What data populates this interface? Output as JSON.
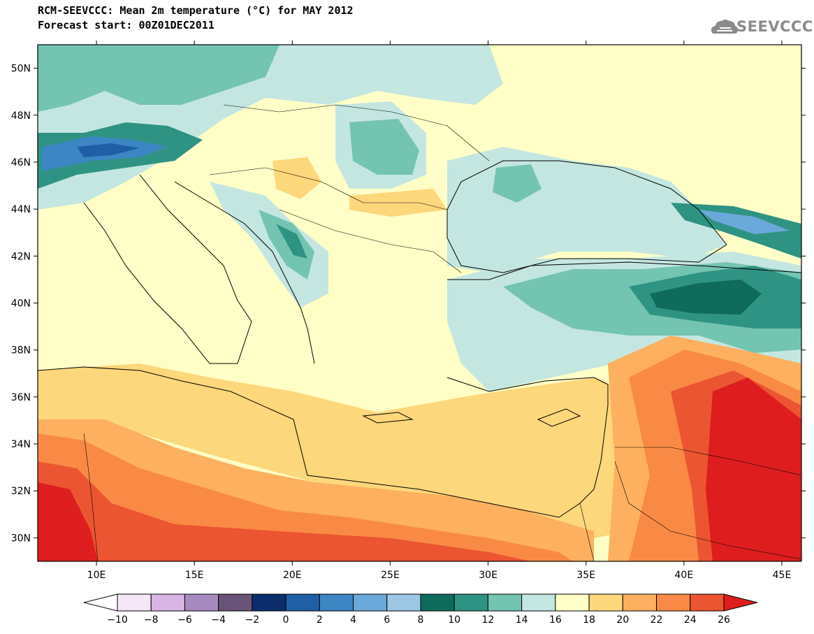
{
  "header": {
    "title_line1": "RCM-SEEVCCC: Mean 2m temperature (°C) for MAY 2012",
    "title_line2": "Forecast start: 00Z01DEC2011",
    "logo_text": "SEEVCCC"
  },
  "map": {
    "lon_range": [
      7,
      46
    ],
    "lat_range": [
      29,
      51
    ],
    "lat_labels": [
      "50N",
      "48N",
      "46N",
      "44N",
      "42N",
      "40N",
      "38N",
      "36N",
      "34N",
      "32N",
      "30N"
    ],
    "lat_values": [
      50,
      48,
      46,
      44,
      42,
      40,
      38,
      36,
      34,
      32,
      30
    ],
    "lon_labels": [
      "10E",
      "15E",
      "20E",
      "25E",
      "30E",
      "35E",
      "40E",
      "45E"
    ],
    "lon_values": [
      10,
      15,
      20,
      25,
      30,
      35,
      40,
      45
    ]
  },
  "colorbar": {
    "labels": [
      "-10",
      "-8",
      "-6",
      "-4",
      "-2",
      "0",
      "2",
      "4",
      "6",
      "8",
      "10",
      "12",
      "14",
      "16",
      "18",
      "20",
      "22",
      "24",
      "26"
    ],
    "colors": [
      "#ffffff",
      "#f2e6f7",
      "#d9b5e6",
      "#a78bc0",
      "#6a5379",
      "#0b2d6b",
      "#1f5fa6",
      "#3c86c4",
      "#6aa9d9",
      "#9cc6e3",
      "#0f6b5c",
      "#2f9383",
      "#74c4b2",
      "#c4e6e1",
      "#ffffc7",
      "#fdd77b",
      "#fdb05f",
      "#f98a45",
      "#ec5531",
      "#de1e1e"
    ]
  }
}
